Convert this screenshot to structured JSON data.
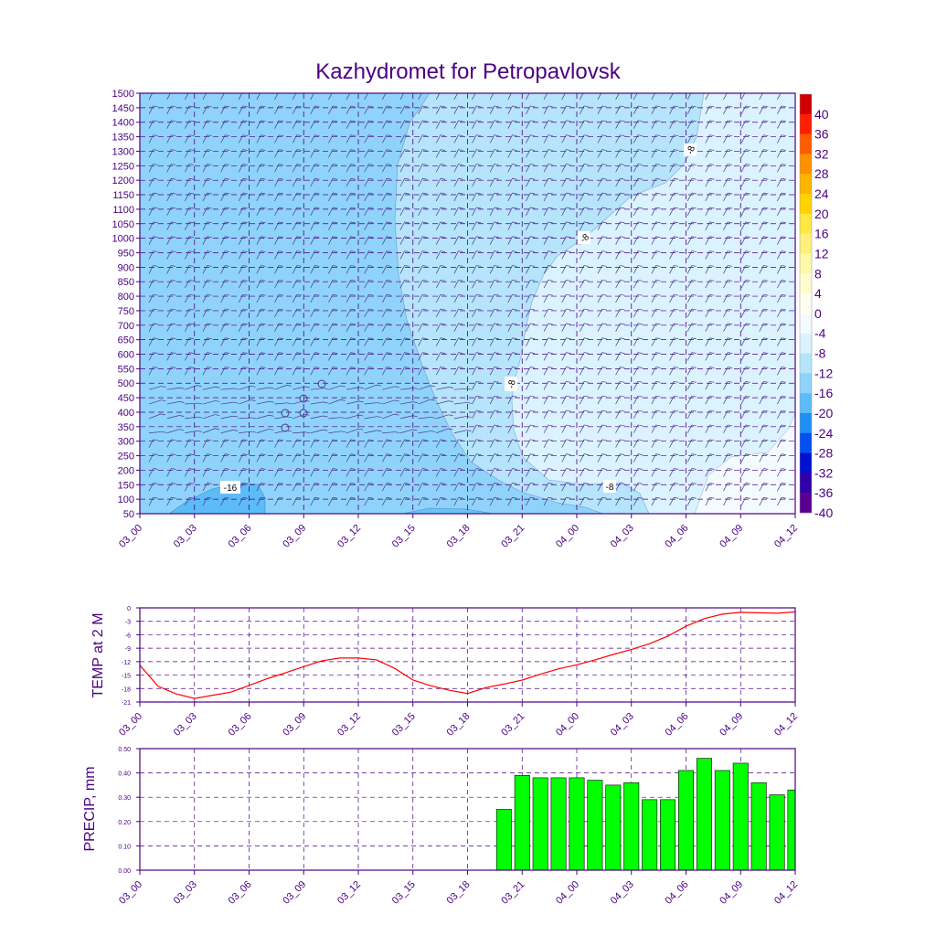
{
  "title": "Kazhydromet for Petropavlovsk",
  "colors": {
    "frame": "#4b0082",
    "temp_line": "#ff0000",
    "precip_bar": "#00ff00",
    "barb": "#4b3a8a"
  },
  "chart_data": [
    {
      "type": "heatmap",
      "name": "time-height cross section",
      "title": "Kazhydromet for Petropavlovsk",
      "x_ticks": [
        "03_00",
        "03_03",
        "03_06",
        "03_09",
        "03_12",
        "03_15",
        "03_18",
        "03_21",
        "04_00",
        "04_03",
        "04_06",
        "04_09",
        "04_12"
      ],
      "y_ticks": [
        50,
        100,
        150,
        200,
        250,
        300,
        350,
        400,
        450,
        500,
        550,
        600,
        650,
        700,
        750,
        800,
        850,
        900,
        950,
        1000,
        1050,
        1100,
        1150,
        1200,
        1250,
        1300,
        1350,
        1400,
        1450,
        1500
      ],
      "ylim": [
        50,
        1500
      ],
      "contour_labels": [
        "-16",
        "-8",
        "-8",
        "-8",
        "-8",
        "-8"
      ],
      "colorbar": {
        "labels": [
          "40",
          "36",
          "32",
          "28",
          "24",
          "20",
          "16",
          "12",
          "8",
          "4",
          "0",
          "-4",
          "-8",
          "-12",
          "-16",
          "-20",
          "-24",
          "-28",
          "-32",
          "-36",
          "-40"
        ],
        "colors": [
          "#d10000",
          "#ff1e00",
          "#ff5a00",
          "#ff9000",
          "#ffb400",
          "#ffd200",
          "#ffe840",
          "#fff07a",
          "#fff8a8",
          "#fffcd0",
          "#fffff0",
          "#f4fbff",
          "#dbf2ff",
          "#b5e4fb",
          "#8fd3fa",
          "#5cbcf7",
          "#1e8ff5",
          "#0050f0",
          "#0010d0",
          "#3000a8",
          "#5a0090"
        ]
      }
    },
    {
      "type": "line",
      "name": "temperature at 2 m",
      "ylabel": "TEMP at 2 M",
      "ylim": [
        -21,
        0
      ],
      "y_ticks": [
        "0",
        "-3",
        "-6",
        "-9",
        "-12",
        "-15",
        "-18",
        "-21"
      ],
      "x_ticks": [
        "03_00",
        "03_03",
        "03_06",
        "03_09",
        "03_12",
        "03_15",
        "03_18",
        "03_21",
        "04_00",
        "04_03",
        "04_06",
        "04_09",
        "04_12"
      ],
      "x": [
        0,
        1,
        2,
        3,
        4,
        5,
        6,
        7,
        8,
        9,
        10,
        11,
        12,
        13,
        14,
        15,
        16,
        17,
        18,
        19,
        20,
        21,
        22,
        23,
        24,
        25,
        26,
        27,
        28,
        29,
        30,
        31,
        32,
        33,
        34,
        35,
        36
      ],
      "values": [
        -12.8,
        -17.5,
        -19.2,
        -20.2,
        -19.5,
        -18.8,
        -17.3,
        -15.8,
        -14.5,
        -13.1,
        -11.8,
        -11.2,
        -11.2,
        -11.6,
        -13.5,
        -16.1,
        -17.4,
        -18.4,
        -19.1,
        -17.8,
        -17.0,
        -16.1,
        -14.8,
        -13.6,
        -12.7,
        -11.6,
        -10.4,
        -9.3,
        -8.0,
        -6.3,
        -4.1,
        -2.4,
        -1.4,
        -1.0,
        -1.1,
        -1.2,
        -0.9
      ]
    },
    {
      "type": "bar",
      "name": "precipitation",
      "ylabel": "PRECIP, mm",
      "ylim": [
        0,
        0.5
      ],
      "y_ticks": [
        "0.50",
        "0.40",
        "0.30",
        "0.20",
        "0.10",
        "0.00"
      ],
      "x_ticks": [
        "03_00",
        "03_03",
        "03_06",
        "03_09",
        "03_12",
        "03_15",
        "03_18",
        "03_21",
        "04_00",
        "04_03",
        "04_06",
        "04_09",
        "04_12"
      ],
      "x": [
        20,
        21,
        22,
        23,
        24,
        25,
        26,
        27,
        28,
        29,
        30,
        31,
        32,
        33,
        34,
        35,
        36
      ],
      "values": [
        0.25,
        0.39,
        0.38,
        0.38,
        0.38,
        0.37,
        0.35,
        0.36,
        0.29,
        0.29,
        0.41,
        0.46,
        0.41,
        0.44,
        0.36,
        0.31,
        0.33
      ]
    }
  ]
}
